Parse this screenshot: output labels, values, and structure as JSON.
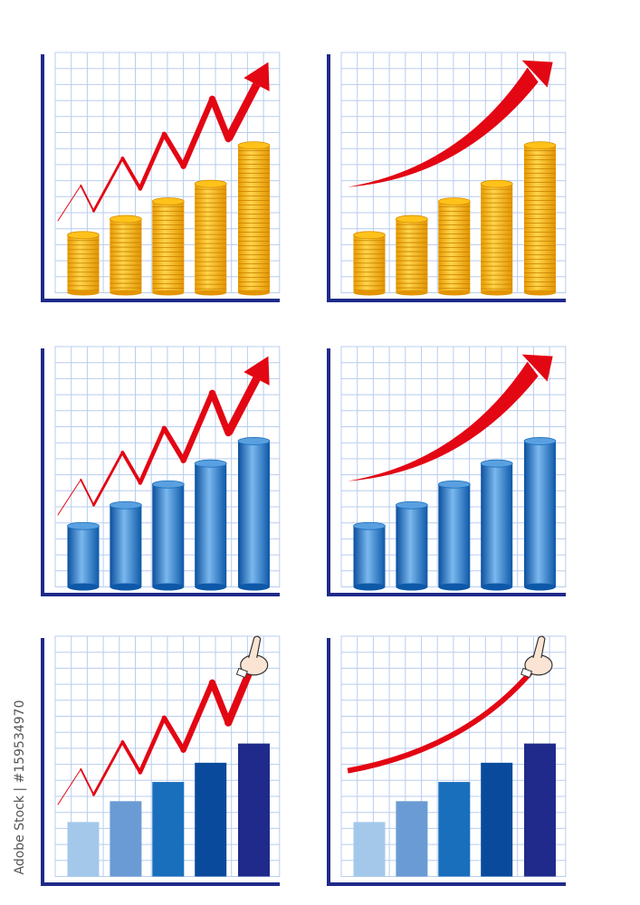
{
  "watermark": "Adobe Stock | #159534970",
  "colors": {
    "axis": "#1f2a8a",
    "grid": "#b8cdee",
    "arrow": "#e30613",
    "coin": "#f5b800",
    "cylinder": "#1a6fbd",
    "flat_bars": [
      "#a4c8ea",
      "#6a9bd4",
      "#1a6fbd",
      "#0a4a9c",
      "#1f2a8a"
    ]
  },
  "chart_data": [
    {
      "type": "bar",
      "bar_style": "coin-stack",
      "trend": "zigzag-arrow",
      "grid": true,
      "ylim": [
        0,
        15
      ],
      "values": [
        3.6,
        4.6,
        5.7,
        6.8,
        9.2
      ],
      "trend_points": [
        [
          0.17,
          4.5
        ],
        [
          1.6,
          6.7
        ],
        [
          2.4,
          5.1
        ],
        [
          4.2,
          8.4
        ],
        [
          5.3,
          6.5
        ],
        [
          6.8,
          9.9
        ],
        [
          8,
          7.9
        ],
        [
          9.8,
          12.1
        ],
        [
          10.8,
          9.6
        ],
        [
          13.3,
          14.4
        ]
      ]
    },
    {
      "type": "bar",
      "bar_style": "coin-stack",
      "trend": "curved-arrow",
      "grid": true,
      "ylim": [
        0,
        15
      ],
      "values": [
        3.6,
        4.6,
        5.7,
        6.8,
        9.2
      ],
      "trend_points": [
        [
          0.4,
          6.6
        ],
        [
          7.5,
          7.5
        ],
        [
          13.2,
          14.4
        ]
      ]
    },
    {
      "type": "bar",
      "bar_style": "cylinder",
      "trend": "zigzag-arrow",
      "grid": true,
      "ylim": [
        0,
        15
      ],
      "values": [
        3.8,
        5.1,
        6.4,
        7.7,
        9.1
      ],
      "trend_points": [
        [
          0.17,
          4.5
        ],
        [
          1.6,
          6.7
        ],
        [
          2.4,
          5.1
        ],
        [
          4.2,
          8.4
        ],
        [
          5.3,
          6.5
        ],
        [
          6.8,
          9.9
        ],
        [
          8,
          7.9
        ],
        [
          9.8,
          12.1
        ],
        [
          10.8,
          9.6
        ],
        [
          13.3,
          14.4
        ]
      ]
    },
    {
      "type": "bar",
      "bar_style": "cylinder",
      "trend": "curved-arrow",
      "grid": true,
      "ylim": [
        0,
        15
      ],
      "values": [
        3.8,
        5.1,
        6.4,
        7.7,
        9.1
      ],
      "trend_points": [
        [
          0.4,
          6.6
        ],
        [
          7.5,
          7.5
        ],
        [
          13.2,
          14.4
        ]
      ]
    },
    {
      "type": "bar",
      "bar_style": "flat",
      "trend": "zigzag-pointing-hand",
      "grid": true,
      "ylim": [
        0,
        15
      ],
      "values": [
        3.4,
        4.7,
        5.9,
        7.1,
        8.3
      ],
      "trend_points": [
        [
          0.17,
          4.5
        ],
        [
          1.6,
          6.7
        ],
        [
          2.4,
          5.1
        ],
        [
          4.2,
          8.4
        ],
        [
          5.3,
          6.5
        ],
        [
          6.8,
          9.9
        ],
        [
          8,
          7.9
        ],
        [
          9.8,
          12.1
        ],
        [
          10.8,
          9.6
        ],
        [
          12.3,
          13.2
        ]
      ]
    },
    {
      "type": "bar",
      "bar_style": "flat",
      "trend": "curved-pointing-hand",
      "grid": true,
      "ylim": [
        0,
        15
      ],
      "values": [
        3.4,
        4.7,
        5.9,
        7.1,
        8.3
      ],
      "trend_points": [
        [
          0.4,
          6.6
        ],
        [
          8,
          8
        ],
        [
          12.2,
          13.2
        ]
      ]
    }
  ]
}
